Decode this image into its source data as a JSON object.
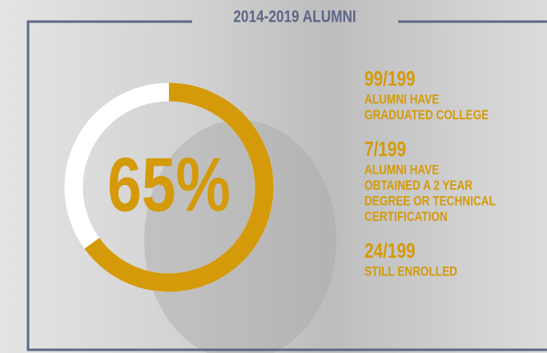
{
  "chart_data": {
    "type": "donut",
    "title": "2014-2019 ALUMNI",
    "values": [
      65
    ],
    "value_labels": [
      "65%"
    ],
    "color": "#d49a0a",
    "track_color": "#ffffff",
    "frame_color": "#5e6687",
    "stats": [
      {
        "value": "99/199",
        "lines": [
          "ALUMNI HAVE",
          "GRADUATED COLLEGE"
        ]
      },
      {
        "value": "7/199",
        "lines": [
          "ALUMNI HAVE",
          "OBTAINED A 2 YEAR",
          "DEGREE OR TECHNICAL",
          "CERTIFICATION"
        ]
      },
      {
        "value": "24/199",
        "lines": [
          "STILL ENROLLED"
        ]
      }
    ]
  }
}
